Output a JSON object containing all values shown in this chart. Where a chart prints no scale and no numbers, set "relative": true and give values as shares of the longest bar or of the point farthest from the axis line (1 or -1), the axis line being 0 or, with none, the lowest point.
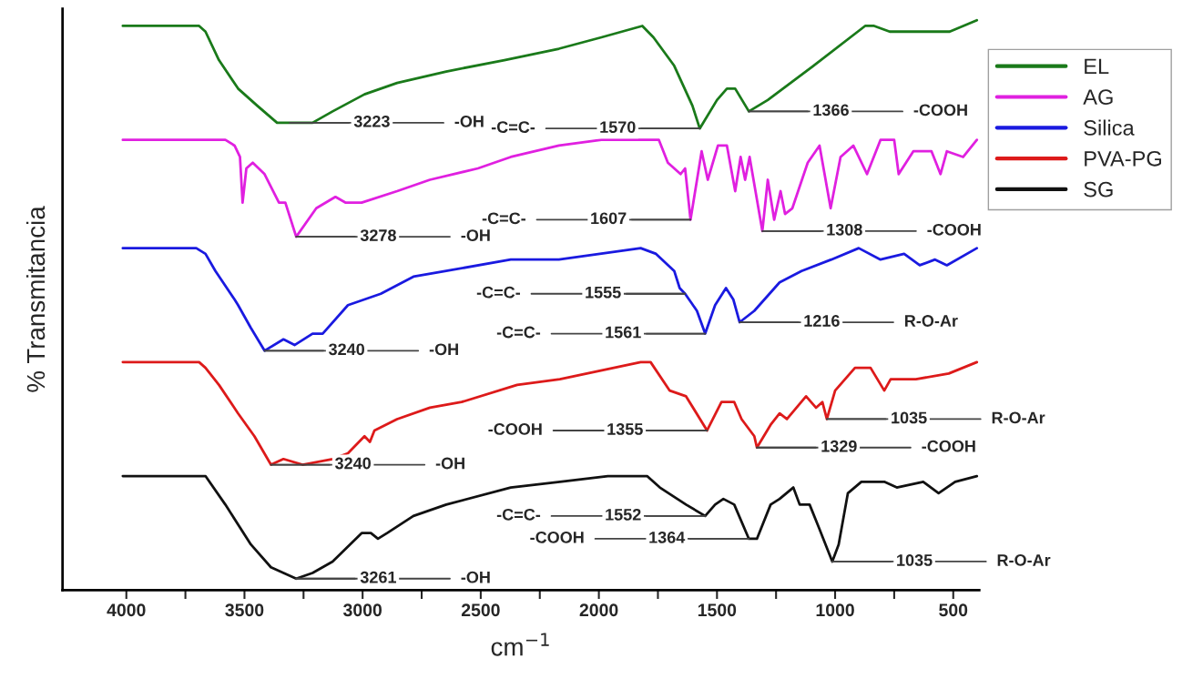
{
  "chart_data": {
    "type": "line",
    "relative": true,
    "xlabel": "cm$^{−1}$",
    "ylabel": "% Transmitancia",
    "legend": "top right",
    "xlim": [
      4270,
      390
    ],
    "xticks": [
      4000,
      {
        "value": 3750,
        "label": null
      },
      3500,
      {
        "value": 3250,
        "label": null
      },
      3000,
      {
        "value": 2750,
        "label": null
      },
      2500,
      {
        "value": 2250,
        "label": null
      },
      2000,
      {
        "value": 1750,
        "label": null
      },
      1500,
      {
        "value": 1250,
        "label": null
      },
      1000,
      {
        "value": 750,
        "label": null
      },
      500
    ],
    "series": [
      {
        "name": "EL",
        "color": "#1a7a1a",
        "x": [
          4015,
          3692,
          3665,
          3608,
          3527,
          3446,
          3362,
          3308,
          3212,
          3127,
          2992,
          2854,
          2646,
          2400,
          2169,
          1989,
          1816,
          1769,
          1681,
          1604,
          1573,
          1500,
          1458,
          1423,
          1365,
          1285,
          1092,
          873,
          835,
          769,
          708,
          515,
          400
        ],
        "values": [
          0.99,
          0.99,
          0.98,
          0.93,
          0.88,
          0.85,
          0.82,
          0.82,
          0.82,
          0.84,
          0.87,
          0.89,
          0.91,
          0.93,
          0.95,
          0.97,
          0.99,
          0.97,
          0.92,
          0.85,
          0.81,
          0.86,
          0.88,
          0.88,
          0.84,
          0.86,
          0.92,
          0.99,
          0.99,
          0.98,
          0.98,
          0.98,
          1.0
        ]
      },
      {
        "name": "AG",
        "color": "#e020e0",
        "x": [
          4015,
          3581,
          3542,
          3519,
          3508,
          3492,
          3465,
          3415,
          3354,
          3327,
          3281,
          3196,
          3115,
          3073,
          3004,
          2854,
          2715,
          2512,
          2373,
          2169,
          1989,
          1746,
          1708,
          1654,
          1635,
          1612,
          1565,
          1539,
          1496,
          1458,
          1423,
          1400,
          1381,
          1362,
          1308,
          1285,
          1258,
          1231,
          1212,
          1181,
          1116,
          1066,
          1019,
          977,
          923,
          865,
          808,
          750,
          731,
          669,
          592,
          554,
          527,
          458,
          400
        ],
        "values": [
          0.79,
          0.79,
          0.78,
          0.76,
          0.68,
          0.74,
          0.75,
          0.73,
          0.68,
          0.68,
          0.62,
          0.67,
          0.69,
          0.68,
          0.68,
          0.7,
          0.72,
          0.74,
          0.76,
          0.78,
          0.79,
          0.79,
          0.75,
          0.73,
          0.74,
          0.65,
          0.77,
          0.72,
          0.78,
          0.78,
          0.7,
          0.76,
          0.72,
          0.76,
          0.63,
          0.72,
          0.65,
          0.7,
          0.66,
          0.67,
          0.75,
          0.78,
          0.67,
          0.76,
          0.78,
          0.73,
          0.79,
          0.79,
          0.73,
          0.77,
          0.77,
          0.73,
          0.77,
          0.76,
          0.79
        ]
      },
      {
        "name": "Silica",
        "color": "#1a1ae0",
        "x": [
          4015,
          3704,
          3665,
          3623,
          3542,
          3527,
          3473,
          3415,
          3335,
          3288,
          3212,
          3169,
          3062,
          2923,
          2785,
          2646,
          2373,
          2169,
          1823,
          1758,
          1681,
          1658,
          1635,
          1585,
          1550,
          1508,
          1462,
          1431,
          1404,
          1342,
          1235,
          1142,
          1016,
          900,
          808,
          708,
          642,
          577,
          527,
          400
        ],
        "values": [
          0.6,
          0.6,
          0.59,
          0.56,
          0.51,
          0.5,
          0.46,
          0.42,
          0.44,
          0.43,
          0.45,
          0.45,
          0.5,
          0.52,
          0.55,
          0.56,
          0.58,
          0.58,
          0.6,
          0.59,
          0.56,
          0.53,
          0.52,
          0.49,
          0.45,
          0.5,
          0.53,
          0.51,
          0.47,
          0.49,
          0.54,
          0.56,
          0.58,
          0.6,
          0.58,
          0.59,
          0.57,
          0.58,
          0.57,
          0.6
        ]
      },
      {
        "name": "PVA-PG",
        "color": "#dd1a1a",
        "x": [
          4015,
          3692,
          3665,
          3608,
          3527,
          3458,
          3388,
          3335,
          3254,
          3127,
          3062,
          2992,
          2969,
          2950,
          2854,
          2715,
          2581,
          2346,
          2165,
          1823,
          1781,
          1700,
          1631,
          1542,
          1481,
          1427,
          1396,
          1342,
          1331,
          1273,
          1235,
          1204,
          1123,
          1081,
          1054,
          1035,
          1000,
          916,
          850,
          792,
          765,
          658,
          519,
          400
        ],
        "values": [
          0.4,
          0.4,
          0.39,
          0.36,
          0.31,
          0.27,
          0.22,
          0.23,
          0.22,
          0.23,
          0.24,
          0.27,
          0.26,
          0.28,
          0.3,
          0.32,
          0.33,
          0.36,
          0.37,
          0.4,
          0.4,
          0.35,
          0.34,
          0.28,
          0.33,
          0.33,
          0.3,
          0.27,
          0.25,
          0.29,
          0.31,
          0.3,
          0.34,
          0.32,
          0.33,
          0.3,
          0.35,
          0.39,
          0.39,
          0.35,
          0.37,
          0.37,
          0.38,
          0.4
        ]
      },
      {
        "name": "SG",
        "color": "#111111",
        "x": [
          4015,
          3692,
          3665,
          3581,
          3473,
          3388,
          3281,
          3212,
          3127,
          3004,
          2965,
          2935,
          2896,
          2785,
          2646,
          2373,
          2165,
          1962,
          1796,
          1742,
          1631,
          1550,
          1508,
          1473,
          1427,
          1365,
          1331,
          1273,
          1235,
          1177,
          1150,
          1108,
          1069,
          1012,
          985,
          946,
          889,
          792,
          739,
          627,
          562,
          492,
          400
        ],
        "values": [
          0.2,
          0.2,
          0.2,
          0.15,
          0.08,
          0.04,
          0.02,
          0.03,
          0.05,
          0.1,
          0.1,
          0.09,
          0.1,
          0.13,
          0.15,
          0.18,
          0.19,
          0.2,
          0.2,
          0.18,
          0.15,
          0.13,
          0.15,
          0.16,
          0.15,
          0.09,
          0.09,
          0.15,
          0.16,
          0.18,
          0.15,
          0.15,
          0.11,
          0.05,
          0.08,
          0.17,
          0.19,
          0.19,
          0.18,
          0.19,
          0.17,
          0.19,
          0.2
        ]
      }
    ],
    "annotations": [
      {
        "text": "3223",
        "x": 3308,
        "y": 0.82
      },
      {
        "text": "-OH",
        "x": 3308,
        "y": 0.82
      },
      {
        "text": "-C=C-",
        "x": 1573,
        "y": 0.81
      },
      {
        "text": "1570",
        "x": 1573,
        "y": 0.81
      },
      {
        "text": "1366",
        "x": 1365,
        "y": 0.84
      },
      {
        "text": "-COOH",
        "x": 1365,
        "y": 0.84
      },
      {
        "text": "3278",
        "x": 3281,
        "y": 0.62
      },
      {
        "text": "-OH",
        "x": 3281,
        "y": 0.62
      },
      {
        "text": "-C=C-",
        "x": 1612,
        "y": 0.65
      },
      {
        "text": "1607",
        "x": 1612,
        "y": 0.65
      },
      {
        "text": "1308",
        "x": 1308,
        "y": 0.63
      },
      {
        "text": "-COOH",
        "x": 1308,
        "y": 0.63
      },
      {
        "text": "3240",
        "x": 3415,
        "y": 0.42
      },
      {
        "text": "-OH",
        "x": 3415,
        "y": 0.42
      },
      {
        "text": "-C=C-",
        "x": 1635,
        "y": 0.52
      },
      {
        "text": "1555",
        "x": 1635,
        "y": 0.52
      },
      {
        "text": "-C=C-",
        "x": 1550,
        "y": 0.45
      },
      {
        "text": "1561",
        "x": 1550,
        "y": 0.45
      },
      {
        "text": "1216",
        "x": 1404,
        "y": 0.47
      },
      {
        "text": "R-O-Ar",
        "x": 1404,
        "y": 0.47
      },
      {
        "text": "3240",
        "x": 3388,
        "y": 0.22
      },
      {
        "text": "-OH",
        "x": 3388,
        "y": 0.22
      },
      {
        "text": "-COOH",
        "x": 1542,
        "y": 0.28
      },
      {
        "text": "1355",
        "x": 1542,
        "y": 0.28
      },
      {
        "text": "1329",
        "x": 1331,
        "y": 0.25
      },
      {
        "text": "-COOH",
        "x": 1331,
        "y": 0.25
      },
      {
        "text": "1035",
        "x": 1035,
        "y": 0.3
      },
      {
        "text": "R-O-Ar",
        "x": 1035,
        "y": 0.3
      },
      {
        "text": "3261",
        "x": 3281,
        "y": 0.02
      },
      {
        "text": "-OH",
        "x": 3281,
        "y": 0.02
      },
      {
        "text": "-C=C-",
        "x": 1550,
        "y": 0.13
      },
      {
        "text": "1552",
        "x": 1550,
        "y": 0.13
      },
      {
        "text": "-COOH",
        "x": 1365,
        "y": 0.09
      },
      {
        "text": "1364",
        "x": 1365,
        "y": 0.09
      },
      {
        "text": "1035",
        "x": 1012,
        "y": 0.05
      },
      {
        "text": "R-O-Ar",
        "x": 1012,
        "y": 0.05
      }
    ]
  }
}
